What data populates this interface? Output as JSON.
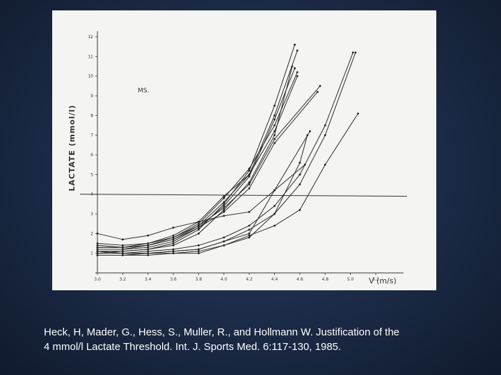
{
  "caption": {
    "line1": "Heck, H, Mader, G., Hess, S., Muller, R., and Hollmann W.  Justification of the",
    "line2": "4 mmol/l Lactate Threshold.  Int. J. Sports Med. 6:117-130, 1985."
  },
  "chart_data": {
    "type": "line",
    "title": "",
    "xlabel": "V (m/s)",
    "ylabel": "LACTATE (mmol/l)",
    "annotation": "MS.",
    "xlim": [
      3.0,
      5.2
    ],
    "ylim": [
      0,
      12
    ],
    "x_ticks": [
      "3.0",
      "3.2",
      "3.4",
      "3.6",
      "3.8",
      "4.0",
      "4.2",
      "4.4",
      "4.6",
      "4.8",
      "5.0",
      "5.2"
    ],
    "y_ticks": [
      "1",
      "2",
      "3",
      "4",
      "5",
      "6",
      "7",
      "8",
      "9",
      "10",
      "11",
      "12"
    ],
    "threshold_line": 4.0,
    "grid": false,
    "series": [
      {
        "x": [
          3.0,
          3.2,
          3.4,
          3.6,
          3.8,
          4.0,
          4.2,
          4.4,
          4.56
        ],
        "y": [
          1.1,
          1.1,
          1.2,
          1.5,
          2.2,
          3.5,
          5.2,
          8.5,
          11.6
        ]
      },
      {
        "x": [
          3.0,
          3.2,
          3.4,
          3.6,
          3.8,
          4.0,
          4.2,
          4.4,
          4.58
        ],
        "y": [
          1.3,
          1.3,
          1.4,
          1.7,
          2.4,
          3.6,
          5.0,
          8.0,
          11.3
        ]
      },
      {
        "x": [
          3.0,
          3.2,
          3.4,
          3.6,
          3.8,
          4.0,
          4.2,
          4.4,
          4.56
        ],
        "y": [
          1.2,
          1.2,
          1.3,
          1.6,
          2.3,
          3.4,
          4.9,
          7.8,
          10.4
        ]
      },
      {
        "x": [
          3.0,
          3.2,
          3.4,
          3.6,
          3.8,
          4.0,
          4.2,
          4.4,
          4.58
        ],
        "y": [
          1.4,
          1.3,
          1.4,
          1.8,
          2.5,
          3.8,
          5.3,
          7.5,
          10.2
        ]
      },
      {
        "x": [
          3.0,
          3.2,
          3.4,
          3.6,
          3.8,
          4.0,
          4.2,
          4.4,
          4.58
        ],
        "y": [
          1.5,
          1.4,
          1.5,
          1.9,
          2.6,
          3.9,
          5.0,
          7.2,
          10.0
        ]
      },
      {
        "x": [
          3.0,
          3.2,
          3.4,
          3.6,
          3.8,
          4.0,
          4.2,
          4.4,
          4.54
        ],
        "y": [
          1.0,
          1.1,
          1.2,
          1.4,
          2.0,
          3.2,
          4.6,
          7.0,
          10.5
        ]
      },
      {
        "x": [
          3.0,
          3.2,
          3.4,
          3.6,
          3.8,
          4.0,
          4.2,
          4.4,
          4.76
        ],
        "y": [
          1.3,
          1.3,
          1.5,
          1.8,
          2.4,
          3.3,
          4.5,
          6.8,
          9.5
        ]
      },
      {
        "x": [
          3.0,
          3.2,
          3.4,
          3.6,
          3.8,
          4.0,
          4.2,
          4.4,
          4.74
        ],
        "y": [
          1.2,
          1.2,
          1.4,
          1.7,
          2.3,
          3.1,
          4.3,
          6.6,
          9.2
        ]
      },
      {
        "x": [
          3.0,
          3.2,
          3.4,
          3.6,
          3.8,
          4.0,
          4.2,
          4.4,
          4.6,
          4.8,
          5.02
        ],
        "y": [
          1.0,
          1.0,
          1.1,
          1.2,
          1.4,
          1.8,
          2.4,
          3.4,
          5.0,
          7.5,
          11.2
        ]
      },
      {
        "x": [
          3.0,
          3.2,
          3.4,
          3.6,
          3.8,
          4.0,
          4.2,
          4.4,
          4.6,
          4.8,
          5.04
        ],
        "y": [
          0.9,
          0.9,
          1.0,
          1.1,
          1.2,
          1.6,
          2.2,
          3.0,
          4.5,
          7.0,
          11.2
        ]
      },
      {
        "x": [
          3.0,
          3.2,
          3.4,
          3.6,
          3.8,
          4.0,
          4.2,
          4.4,
          4.6,
          4.8,
          5.06
        ],
        "y": [
          1.1,
          1.0,
          1.0,
          1.0,
          1.0,
          1.4,
          1.9,
          2.4,
          3.2,
          5.5,
          8.1
        ]
      },
      {
        "x": [
          3.0,
          3.2,
          3.4,
          3.6,
          3.8,
          4.0,
          4.2,
          4.4,
          4.6,
          4.66
        ],
        "y": [
          0.9,
          0.9,
          0.9,
          1.0,
          1.1,
          1.4,
          1.8,
          3.0,
          5.6,
          7.0
        ]
      },
      {
        "x": [
          3.0,
          3.2,
          3.4,
          3.6,
          3.8,
          4.0,
          4.2,
          4.4,
          4.68
        ],
        "y": [
          2.0,
          1.7,
          1.9,
          2.3,
          2.6,
          2.9,
          3.1,
          4.2,
          7.2
        ]
      },
      {
        "x": [
          3.0,
          3.2,
          3.4,
          3.6,
          3.8,
          4.0,
          4.2,
          4.4,
          4.64
        ],
        "y": [
          1.1,
          1.0,
          1.0,
          1.1,
          1.2,
          1.6,
          2.0,
          4.2,
          5.5
        ]
      }
    ]
  }
}
